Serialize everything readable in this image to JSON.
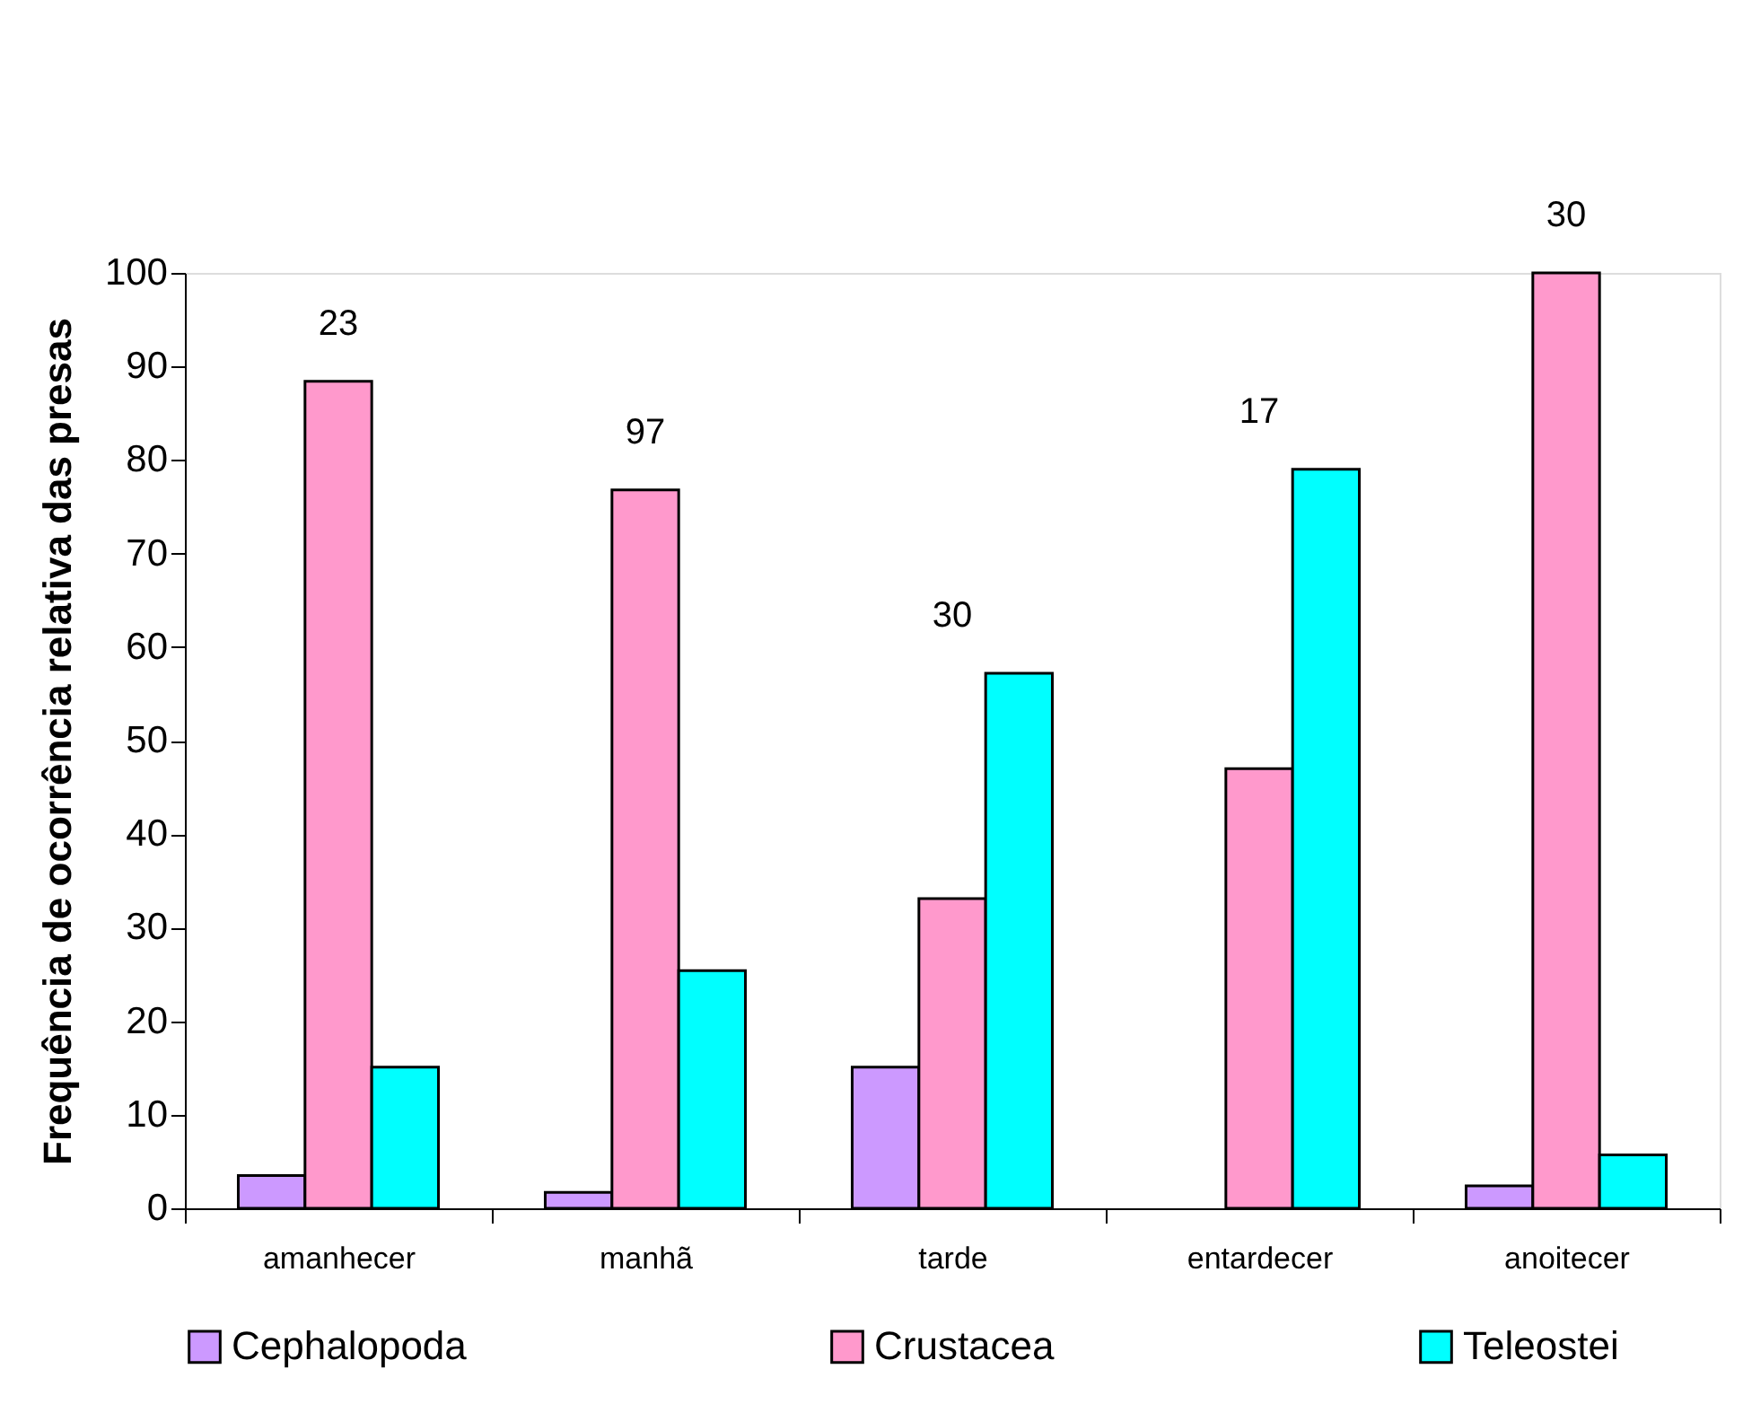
{
  "chart_data": {
    "type": "bar",
    "ylabel": "Frequência de ocorrência relativa das presas",
    "categories": [
      "amanhecer",
      "manhã",
      "tarde",
      "entardecer",
      "anoitecer"
    ],
    "series": [
      {
        "name": "Cephalopoda",
        "color": "#cc99ff",
        "values": [
          3.5,
          1.7,
          15.1,
          null,
          2.4
        ]
      },
      {
        "name": "Crustacea",
        "color": "#ff99cc",
        "values": [
          88.4,
          76.8,
          33.1,
          47.0,
          100
        ]
      },
      {
        "name": "Teleostei",
        "color": "#00ffff",
        "values": [
          15.1,
          25.4,
          57.2,
          79.0,
          5.7
        ]
      }
    ],
    "annotations": [
      "23",
      "97",
      "30",
      "17",
      "30"
    ],
    "ylim": [
      0,
      100
    ],
    "yticks": [
      0,
      10,
      20,
      30,
      40,
      50,
      60,
      70,
      80,
      90,
      100
    ],
    "grid": false,
    "legend": "bottom"
  }
}
